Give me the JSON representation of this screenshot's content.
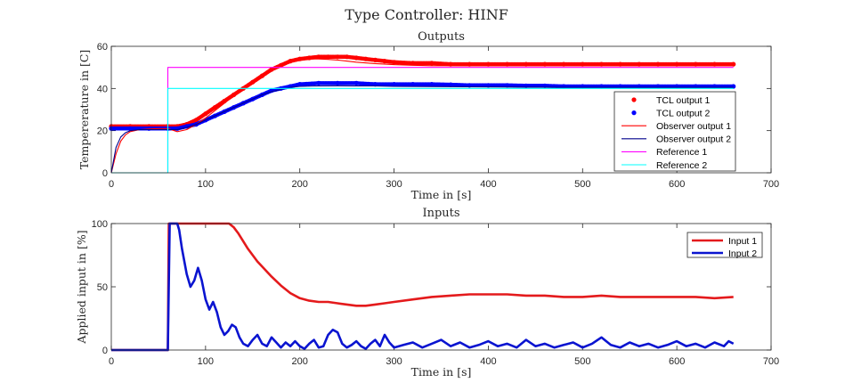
{
  "figure": {
    "title": "Type Controller: HINF"
  },
  "chart_data": [
    {
      "type": "line",
      "title": "Outputs",
      "xlabel": "Time in [s]",
      "ylabel": "Tempererature in [C]",
      "xlim": [
        0,
        700
      ],
      "ylim": [
        0,
        60
      ],
      "xticks": [
        "0",
        "100",
        "200",
        "300",
        "400",
        "500",
        "600",
        "700"
      ],
      "yticks": [
        "0",
        "20",
        "40",
        "60"
      ],
      "grid": false,
      "legend_position": "bottom-right",
      "series": [
        {
          "name": "TCL output 1",
          "style": "dots",
          "color": "#ff0000",
          "x": [
            0,
            20,
            40,
            60,
            70,
            80,
            90,
            100,
            110,
            120,
            130,
            140,
            150,
            160,
            170,
            180,
            190,
            200,
            210,
            220,
            230,
            240,
            250,
            260,
            270,
            280,
            290,
            300,
            320,
            340,
            360,
            380,
            400,
            420,
            440,
            460,
            480,
            500,
            520,
            540,
            560,
            580,
            600,
            620,
            640,
            660
          ],
          "y": [
            22,
            22,
            22,
            22,
            22,
            23,
            25,
            28,
            31,
            34,
            37,
            40,
            43,
            46,
            49,
            51,
            53,
            54,
            54.5,
            55,
            55,
            55,
            55,
            54.5,
            54,
            53.5,
            53,
            52.5,
            52,
            52,
            51.5,
            51.5,
            51.5,
            51.5,
            51.5,
            51.5,
            51.5,
            51.5,
            51.5,
            51.5,
            51.5,
            51.5,
            51.5,
            51.5,
            51.5,
            51.5
          ]
        },
        {
          "name": "TCL output 2",
          "style": "dots",
          "color": "#0000ff",
          "x": [
            0,
            20,
            40,
            60,
            70,
            80,
            90,
            100,
            110,
            120,
            130,
            140,
            150,
            160,
            170,
            180,
            190,
            200,
            220,
            240,
            260,
            280,
            300,
            320,
            340,
            360,
            380,
            400,
            420,
            440,
            460,
            480,
            500,
            520,
            540,
            560,
            580,
            600,
            620,
            640,
            660
          ],
          "y": [
            21,
            21,
            21,
            21,
            21,
            22,
            23,
            25,
            27,
            29,
            31,
            33,
            35,
            37,
            39,
            40,
            41,
            42,
            42.5,
            42.5,
            42.5,
            42,
            42,
            42,
            42,
            41.8,
            41.5,
            41.5,
            41.5,
            41.3,
            41.3,
            41,
            41,
            41,
            41,
            41,
            41,
            41,
            41,
            41,
            41
          ]
        },
        {
          "name": "Observer output 1",
          "style": "line",
          "color": "#ff0000",
          "x": [
            0,
            5,
            10,
            15,
            20,
            30,
            40,
            50,
            60,
            70,
            80,
            90,
            100,
            110,
            120,
            130,
            140,
            150,
            160,
            170,
            180,
            190,
            200,
            210,
            220,
            230,
            240,
            250,
            260,
            280,
            300,
            320,
            340,
            360,
            380,
            400,
            450,
            500,
            550,
            600,
            660
          ],
          "y": [
            0,
            9,
            15,
            18,
            19.5,
            20.5,
            20.8,
            21,
            21,
            19.5,
            20.5,
            23,
            26,
            29.5,
            33,
            36.5,
            40,
            43.5,
            46.5,
            49,
            51,
            52.5,
            53.5,
            54,
            54,
            53.8,
            53.5,
            53,
            52.5,
            51.8,
            51.3,
            51,
            50.8,
            50.8,
            50.7,
            50.7,
            50.7,
            50.7,
            50.7,
            50.7,
            50.7
          ]
        },
        {
          "name": "Observer output 2",
          "style": "line",
          "color": "#00008b",
          "x": [
            0,
            5,
            10,
            15,
            20,
            30,
            40,
            50,
            60,
            70,
            80,
            90,
            100,
            110,
            120,
            130,
            140,
            150,
            160,
            170,
            180,
            190,
            200,
            220,
            240,
            260,
            280,
            300,
            340,
            380,
            420,
            460,
            500,
            550,
            600,
            660
          ],
          "y": [
            0,
            12,
            17,
            19,
            20,
            20.5,
            20.5,
            20.5,
            20.5,
            20.5,
            21.5,
            23,
            25,
            27,
            29,
            31,
            33,
            35,
            37,
            38.5,
            39.5,
            40.5,
            41,
            41.2,
            41.3,
            41.2,
            41.2,
            41,
            40.9,
            40.8,
            40.7,
            40.6,
            40.5,
            40.5,
            40.5,
            40.5
          ]
        },
        {
          "name": "Reference 1",
          "style": "line",
          "color": "#ff00ff",
          "x": [
            0,
            60,
            60,
            660
          ],
          "y": [
            0,
            0,
            50,
            50
          ]
        },
        {
          "name": "Reference 2",
          "style": "line",
          "color": "#00ffff",
          "x": [
            0,
            60,
            60,
            660
          ],
          "y": [
            0,
            0,
            40,
            40
          ]
        }
      ]
    },
    {
      "type": "line",
      "title": "Inputs",
      "xlabel": "Time in [s]",
      "ylabel": "Applied input in  [%]",
      "xlim": [
        0,
        700
      ],
      "ylim": [
        0,
        100
      ],
      "xticks": [
        "0",
        "100",
        "200",
        "300",
        "400",
        "500",
        "600",
        "700"
      ],
      "yticks": [
        "0",
        "50",
        "100"
      ],
      "grid": false,
      "legend_position": "top-right",
      "series": [
        {
          "name": "Input 1",
          "style": "line",
          "color": "#e41a1c",
          "x": [
            0,
            60,
            61,
            62,
            125,
            130,
            135,
            140,
            145,
            150,
            155,
            160,
            170,
            180,
            190,
            200,
            210,
            220,
            230,
            240,
            250,
            260,
            270,
            280,
            290,
            300,
            320,
            340,
            360,
            380,
            400,
            420,
            440,
            460,
            480,
            500,
            520,
            540,
            560,
            580,
            600,
            620,
            640,
            660
          ],
          "y": [
            0,
            0,
            100,
            100,
            100,
            97,
            92,
            86,
            80,
            75,
            70,
            66,
            58,
            51,
            45,
            41,
            39,
            38,
            38,
            37,
            36,
            35,
            35,
            36,
            37,
            38,
            40,
            42,
            43,
            44,
            44,
            44,
            43,
            43,
            42,
            42,
            43,
            42,
            42,
            42,
            42,
            42,
            41,
            42
          ]
        },
        {
          "name": "Input 2",
          "style": "line",
          "color": "#0a14d0",
          "x": [
            0,
            60,
            62,
            65,
            70,
            72,
            75,
            80,
            84,
            88,
            92,
            96,
            100,
            104,
            108,
            112,
            116,
            120,
            124,
            128,
            132,
            136,
            140,
            145,
            150,
            155,
            160,
            165,
            170,
            175,
            180,
            185,
            190,
            195,
            200,
            205,
            210,
            215,
            220,
            225,
            230,
            235,
            240,
            245,
            250,
            255,
            260,
            265,
            270,
            275,
            280,
            285,
            290,
            295,
            300,
            310,
            320,
            330,
            340,
            350,
            360,
            370,
            380,
            390,
            400,
            410,
            420,
            430,
            440,
            450,
            460,
            470,
            480,
            490,
            500,
            510,
            520,
            530,
            540,
            550,
            560,
            570,
            580,
            590,
            600,
            610,
            620,
            630,
            640,
            650,
            655,
            660
          ],
          "y": [
            0,
            0,
            100,
            100,
            100,
            95,
            80,
            60,
            50,
            55,
            65,
            55,
            40,
            32,
            38,
            30,
            18,
            12,
            15,
            20,
            18,
            10,
            5,
            3,
            8,
            12,
            5,
            3,
            10,
            6,
            2,
            6,
            3,
            7,
            3,
            1,
            5,
            8,
            2,
            3,
            12,
            16,
            14,
            5,
            2,
            4,
            7,
            3,
            1,
            5,
            8,
            3,
            12,
            6,
            2,
            4,
            6,
            2,
            5,
            8,
            3,
            6,
            2,
            4,
            7,
            3,
            5,
            2,
            8,
            3,
            5,
            2,
            4,
            6,
            2,
            5,
            10,
            4,
            2,
            6,
            3,
            5,
            2,
            4,
            7,
            3,
            5,
            2,
            6,
            3,
            7,
            5
          ]
        }
      ]
    }
  ]
}
